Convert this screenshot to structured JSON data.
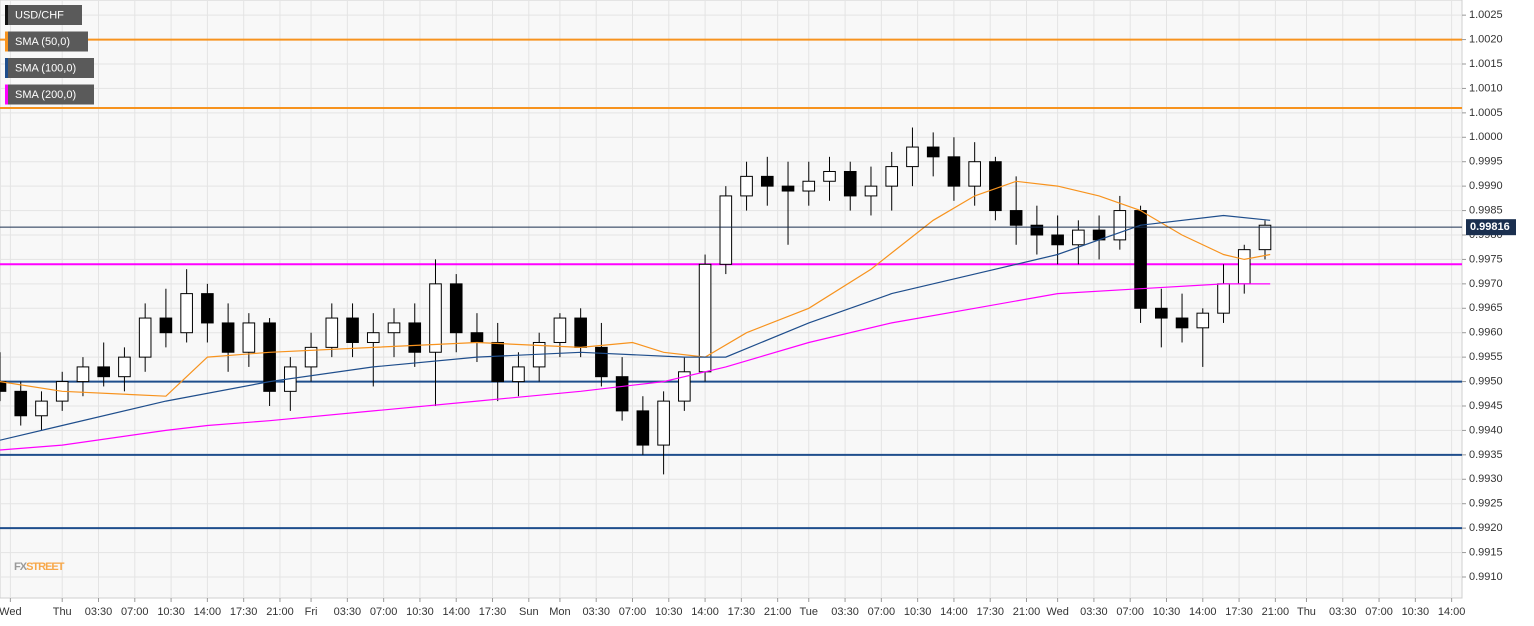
{
  "chart_data": {
    "type": "candlestick",
    "xlim": [
      -6,
      135
    ],
    "ylim": [
      0.99057,
      1.00281
    ],
    "grid": true,
    "watermark": [
      "FX",
      "STREET"
    ],
    "last_price": 0.99816,
    "last_price_color": "#1a2f4f",
    "levels": [
      {
        "value": 1.002,
        "color": "#f7931e"
      },
      {
        "value": 1.0006,
        "color": "#f7931e"
      },
      {
        "value": 0.9974,
        "color": "#ff00ff"
      },
      {
        "value": 0.995,
        "color": "#1f4e8c"
      },
      {
        "value": 0.9935,
        "color": "#1f4e8c"
      },
      {
        "value": 0.992,
        "color": "#1f4e8c"
      }
    ],
    "xticks": [
      {
        "value": -5,
        "label": "Wed"
      },
      {
        "value": 0,
        "label": "Thu"
      },
      {
        "value": 3.5,
        "label": "03:30"
      },
      {
        "value": 7,
        "label": "07:00"
      },
      {
        "value": 10.5,
        "label": "10:30"
      },
      {
        "value": 14,
        "label": "14:00"
      },
      {
        "value": 17.5,
        "label": "17:30"
      },
      {
        "value": 21,
        "label": "21:00"
      },
      {
        "value": 24,
        "label": "Fri"
      },
      {
        "value": 27.5,
        "label": "03:30"
      },
      {
        "value": 31,
        "label": "07:00"
      },
      {
        "value": 34.5,
        "label": "10:30"
      },
      {
        "value": 38,
        "label": "14:00"
      },
      {
        "value": 41.5,
        "label": "17:30"
      },
      {
        "value": 45,
        "label": "Sun"
      },
      {
        "value": 48,
        "label": "Mon"
      },
      {
        "value": 51.5,
        "label": "03:30"
      },
      {
        "value": 55,
        "label": "07:00"
      },
      {
        "value": 58.5,
        "label": "10:30"
      },
      {
        "value": 62,
        "label": "14:00"
      },
      {
        "value": 65.5,
        "label": "17:30"
      },
      {
        "value": 69,
        "label": "21:00"
      },
      {
        "value": 72,
        "label": "Tue"
      },
      {
        "value": 75.5,
        "label": "03:30"
      },
      {
        "value": 79,
        "label": "07:00"
      },
      {
        "value": 82.5,
        "label": "10:30"
      },
      {
        "value": 86,
        "label": "14:00"
      },
      {
        "value": 89.5,
        "label": "17:30"
      },
      {
        "value": 93,
        "label": "21:00"
      },
      {
        "value": 96,
        "label": "Wed"
      },
      {
        "value": 99.5,
        "label": "03:30"
      },
      {
        "value": 103,
        "label": "07:00"
      },
      {
        "value": 106.5,
        "label": "10:30"
      },
      {
        "value": 110,
        "label": "14:00"
      },
      {
        "value": 113.5,
        "label": "17:30"
      },
      {
        "value": 117,
        "label": "21:00"
      },
      {
        "value": 120,
        "label": "Thu"
      },
      {
        "value": 123.5,
        "label": "03:30"
      },
      {
        "value": 127,
        "label": "07:00"
      },
      {
        "value": 130.5,
        "label": "10:30"
      },
      {
        "value": 134,
        "label": "14:00"
      }
    ],
    "yticks": [
      {
        "value": 1.0025,
        "label": "1.0025"
      },
      {
        "value": 1.002,
        "label": "1.0020"
      },
      {
        "value": 1.0015,
        "label": "1.0015"
      },
      {
        "value": 1.001,
        "label": "1.0010"
      },
      {
        "value": 1.0005,
        "label": "1.0005"
      },
      {
        "value": 1.0,
        "label": "1.0000"
      },
      {
        "value": 0.9995,
        "label": "0.9995"
      },
      {
        "value": 0.999,
        "label": "0.9990"
      },
      {
        "value": 0.9985,
        "label": "0.9985"
      },
      {
        "value": 0.998,
        "label": "0.9980"
      },
      {
        "value": 0.9975,
        "label": "0.9975"
      },
      {
        "value": 0.997,
        "label": "0.9970"
      },
      {
        "value": 0.9965,
        "label": "0.9965"
      },
      {
        "value": 0.996,
        "label": "0.9960"
      },
      {
        "value": 0.9955,
        "label": "0.9955"
      },
      {
        "value": 0.995,
        "label": "0.9950"
      },
      {
        "value": 0.9945,
        "label": "0.9945"
      },
      {
        "value": 0.994,
        "label": "0.9940"
      },
      {
        "value": 0.9935,
        "label": "0.9935"
      },
      {
        "value": 0.993,
        "label": "0.9930"
      },
      {
        "value": 0.9925,
        "label": "0.9925"
      },
      {
        "value": 0.992,
        "label": "0.9920"
      },
      {
        "value": 0.9915,
        "label": "0.9915"
      },
      {
        "value": 0.991,
        "label": "0.9910"
      }
    ],
    "series": [
      {
        "name": "USD/CHF",
        "type": "candlestick",
        "color": "#000000",
        "x": [
          -6,
          -4,
          -2,
          0,
          2,
          4,
          6,
          8,
          10,
          12,
          14,
          16,
          18,
          20,
          22,
          24,
          26,
          28,
          30,
          32,
          34,
          36,
          38,
          40,
          42,
          44,
          46,
          48,
          50,
          52,
          54,
          56,
          58,
          60,
          62,
          64,
          66,
          68,
          70,
          72,
          74,
          76,
          78,
          80,
          82,
          84,
          86,
          88,
          90,
          92,
          94,
          96,
          98,
          100,
          102,
          104,
          106,
          108,
          110,
          112,
          114,
          116
        ],
        "open": [
          0.995,
          0.9948,
          0.9943,
          0.9946,
          0.995,
          0.9953,
          0.9951,
          0.9955,
          0.9963,
          0.996,
          0.9968,
          0.9962,
          0.9956,
          0.9962,
          0.9948,
          0.9953,
          0.9957,
          0.9963,
          0.9958,
          0.996,
          0.9962,
          0.9956,
          0.997,
          0.996,
          0.9958,
          0.995,
          0.9953,
          0.9958,
          0.9963,
          0.9957,
          0.9951,
          0.9944,
          0.9937,
          0.9946,
          0.9952,
          0.9974,
          0.9988,
          0.9992,
          0.999,
          0.9989,
          0.9991,
          0.9993,
          0.9988,
          0.999,
          0.9994,
          0.9998,
          0.9996,
          0.999,
          0.9995,
          0.9985,
          0.9982,
          0.998,
          0.9978,
          0.9981,
          0.9979,
          0.9985,
          0.9965,
          0.9963,
          0.9961,
          0.9964,
          0.997,
          0.9977
        ],
        "high": [
          0.9956,
          0.995,
          0.9948,
          0.9952,
          0.9955,
          0.9958,
          0.9957,
          0.9966,
          0.9969,
          0.9973,
          0.997,
          0.9966,
          0.9964,
          0.9963,
          0.9955,
          0.996,
          0.9966,
          0.9966,
          0.9964,
          0.9965,
          0.9966,
          0.9975,
          0.9972,
          0.9964,
          0.9962,
          0.9956,
          0.996,
          0.9964,
          0.9965,
          0.9962,
          0.9955,
          0.9947,
          0.9948,
          0.9955,
          0.9976,
          0.999,
          0.9995,
          0.9996,
          0.9995,
          0.9995,
          0.9996,
          0.9995,
          0.9994,
          0.9997,
          1.0002,
          1.0001,
          1.0,
          0.9999,
          0.9996,
          0.9992,
          0.9986,
          0.9984,
          0.9983,
          0.9984,
          0.9988,
          0.9986,
          0.9969,
          0.9968,
          0.9965,
          0.9974,
          0.9978,
          0.9983
        ],
        "low": [
          0.9946,
          0.9941,
          0.994,
          0.9944,
          0.9947,
          0.9949,
          0.9948,
          0.9952,
          0.9957,
          0.9958,
          0.9958,
          0.9952,
          0.9953,
          0.9945,
          0.9944,
          0.995,
          0.9955,
          0.9955,
          0.9949,
          0.9955,
          0.9953,
          0.9945,
          0.9956,
          0.9954,
          0.9946,
          0.9947,
          0.995,
          0.9955,
          0.9955,
          0.9949,
          0.9942,
          0.9935,
          0.9931,
          0.9944,
          0.995,
          0.9972,
          0.9985,
          0.9986,
          0.9978,
          0.9986,
          0.9987,
          0.9985,
          0.9984,
          0.9985,
          0.999,
          0.9992,
          0.9987,
          0.9986,
          0.9983,
          0.9978,
          0.9976,
          0.9974,
          0.9974,
          0.9975,
          0.9977,
          0.9962,
          0.9957,
          0.9958,
          0.9953,
          0.9962,
          0.9968,
          0.9975
        ],
        "close": [
          0.9948,
          0.9943,
          0.9946,
          0.995,
          0.9953,
          0.9951,
          0.9955,
          0.9963,
          0.996,
          0.9968,
          0.9962,
          0.9956,
          0.9962,
          0.9948,
          0.9953,
          0.9957,
          0.9963,
          0.9958,
          0.996,
          0.9962,
          0.9956,
          0.997,
          0.996,
          0.9958,
          0.995,
          0.9953,
          0.9958,
          0.9963,
          0.9957,
          0.9951,
          0.9944,
          0.9937,
          0.9946,
          0.9952,
          0.9974,
          0.9988,
          0.9992,
          0.999,
          0.9989,
          0.9991,
          0.9993,
          0.9988,
          0.999,
          0.9994,
          0.9998,
          0.9996,
          0.999,
          0.9995,
          0.9985,
          0.9982,
          0.998,
          0.9978,
          0.9981,
          0.9979,
          0.9985,
          0.9965,
          0.9963,
          0.9961,
          0.9964,
          0.997,
          0.9977,
          0.9982
        ]
      },
      {
        "name": "SMA (50,0)",
        "type": "line",
        "color": "#f7931e",
        "x": [
          -6,
          0,
          10,
          14,
          20,
          30,
          40,
          50,
          55,
          58,
          62,
          66,
          72,
          78,
          84,
          88,
          92,
          96,
          100,
          104,
          108,
          112,
          114,
          116.5
        ],
        "values": [
          0.995,
          0.9948,
          0.9947,
          0.9955,
          0.9956,
          0.9957,
          0.9958,
          0.9957,
          0.9958,
          0.9956,
          0.9955,
          0.996,
          0.9965,
          0.9973,
          0.9983,
          0.9988,
          0.9991,
          0.999,
          0.9988,
          0.9985,
          0.998,
          0.9976,
          0.9975,
          0.9976
        ]
      },
      {
        "name": "SMA (100,0)",
        "type": "line",
        "color": "#1f4e8c",
        "x": [
          -6,
          0,
          10,
          20,
          30,
          40,
          50,
          60,
          64,
          72,
          80,
          88,
          96,
          104,
          112,
          116.5
        ],
        "values": [
          0.9938,
          0.9941,
          0.9946,
          0.995,
          0.9953,
          0.9955,
          0.9956,
          0.9955,
          0.9955,
          0.9962,
          0.9968,
          0.9972,
          0.9976,
          0.9982,
          0.9984,
          0.9983
        ]
      },
      {
        "name": "SMA (200,0)",
        "type": "line",
        "color": "#ff00ff",
        "x": [
          -6,
          0,
          10,
          14,
          20,
          30,
          40,
          50,
          58,
          64,
          72,
          80,
          88,
          96,
          104,
          112,
          116.5
        ],
        "values": [
          0.9936,
          0.9937,
          0.994,
          0.9941,
          0.9942,
          0.9944,
          0.9946,
          0.9948,
          0.995,
          0.9953,
          0.9958,
          0.9962,
          0.9965,
          0.9968,
          0.9969,
          0.997,
          0.997
        ]
      }
    ]
  }
}
